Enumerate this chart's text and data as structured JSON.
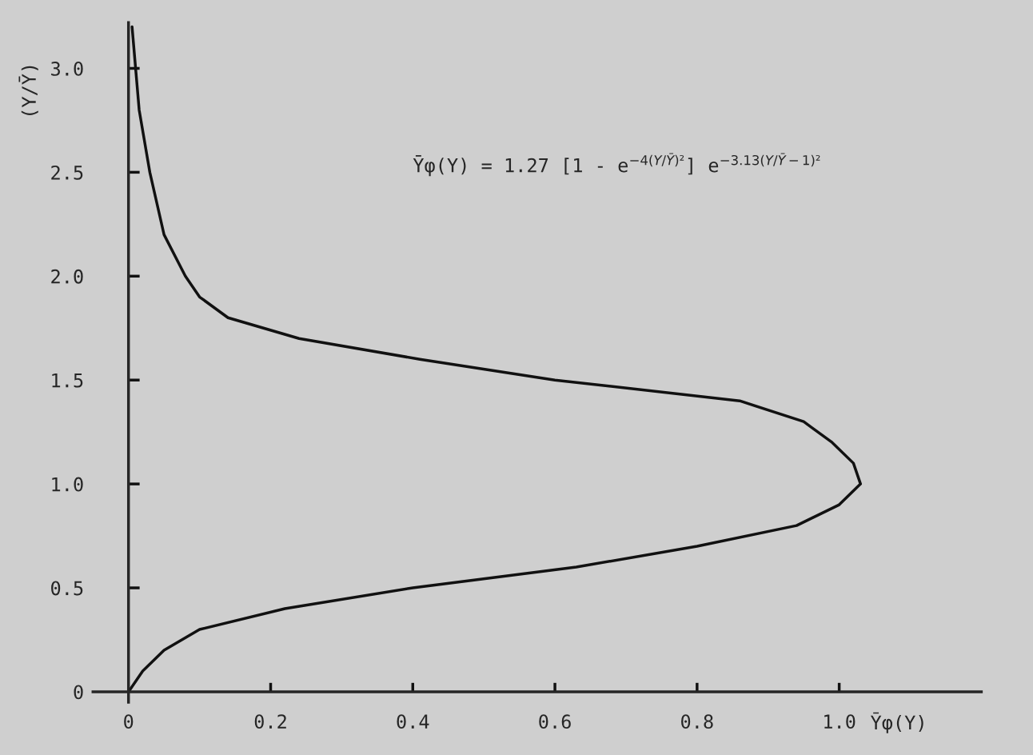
{
  "chart_data": {
    "type": "line",
    "xlabel": "Ȳφ(Y)",
    "ylabel": "(Y/Ȳ)",
    "annotations": [
      "Ȳφ(Y) = 1.27 [1 - e$^{−4(Y/Ȳ)²}$] e$^{−3.13(Y/Ȳ−1)²}$"
    ],
    "series": [
      {
        "color": "#111111",
        "x": [
          0,
          0.02,
          0.05,
          0.1,
          0.22,
          0.4,
          0.63,
          0.8,
          0.94,
          1.0,
          1.03,
          1.02,
          0.99,
          0.95,
          0.86,
          0.6,
          0.41,
          0.24,
          0.14,
          0.1,
          0.08,
          0.05,
          0.03,
          0.015,
          0.01,
          0.005
        ],
        "values": [
          0,
          0.1,
          0.2,
          0.3,
          0.4,
          0.5,
          0.6,
          0.7,
          0.8,
          0.9,
          1.0,
          1.1,
          1.2,
          1.3,
          1.4,
          1.5,
          1.6,
          1.7,
          1.8,
          1.9,
          2.0,
          2.2,
          2.5,
          2.8,
          3.0,
          3.2
        ]
      }
    ],
    "xlim": [
      -0.05,
      1.2
    ],
    "ylim": [
      -0.05,
      3.22
    ],
    "xticks": [
      0,
      0.2,
      0.4,
      0.6,
      0.8,
      {
        "value": 1,
        "label": "1.0"
      }
    ],
    "yticks": [
      0,
      0.5,
      {
        "value": 1,
        "label": "1.0"
      },
      1.5,
      {
        "value": 2,
        "label": "2.0"
      },
      2.5,
      {
        "value": 3,
        "label": "3.0"
      }
    ],
    "marker": "none",
    "line_style": "solid"
  }
}
